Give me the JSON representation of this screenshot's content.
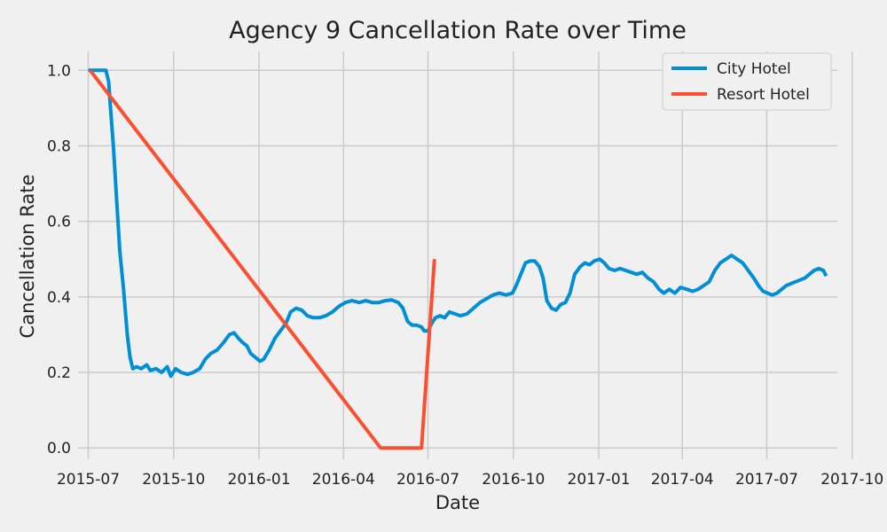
{
  "chart_data": {
    "type": "line",
    "title": "Agency 9 Cancellation Rate over Time",
    "xlabel": "Date",
    "ylabel": "Cancellation Rate",
    "xlim": [
      "2015-06-20",
      "2017-09-15"
    ],
    "ylim": [
      -0.03,
      1.05
    ],
    "x_ticks": [
      "2015-07-01",
      "2015-10-01",
      "2016-01-01",
      "2016-04-01",
      "2016-07-01",
      "2016-10-01",
      "2017-01-01",
      "2017-04-01",
      "2017-07-01",
      "2017-10-01"
    ],
    "x_tick_labels": [
      "2015-07",
      "2015-10",
      "2016-01",
      "2016-04",
      "2016-07",
      "2016-10",
      "2017-01",
      "2017-04",
      "2017-07",
      "2017-10"
    ],
    "y_ticks": [
      0.0,
      0.2,
      0.4,
      0.6,
      0.8,
      1.0
    ],
    "y_tick_labels": [
      "0.0",
      "0.2",
      "0.4",
      "0.6",
      "0.8",
      "1.0"
    ],
    "grid": true,
    "legend_position": "top-right",
    "series": [
      {
        "name": "City Hotel",
        "color": "#008fd5",
        "points": [
          [
            "2015-07-01",
            1.0
          ],
          [
            "2015-07-20",
            1.0
          ],
          [
            "2015-07-23",
            0.97
          ],
          [
            "2015-07-25",
            0.9
          ],
          [
            "2015-07-28",
            0.8
          ],
          [
            "2015-07-31",
            0.68
          ],
          [
            "2015-08-04",
            0.52
          ],
          [
            "2015-08-08",
            0.42
          ],
          [
            "2015-08-12",
            0.3
          ],
          [
            "2015-08-15",
            0.24
          ],
          [
            "2015-08-18",
            0.21
          ],
          [
            "2015-08-22",
            0.215
          ],
          [
            "2015-08-27",
            0.21
          ],
          [
            "2015-09-02",
            0.22
          ],
          [
            "2015-09-06",
            0.205
          ],
          [
            "2015-09-12",
            0.21
          ],
          [
            "2015-09-18",
            0.2
          ],
          [
            "2015-09-24",
            0.215
          ],
          [
            "2015-09-28",
            0.19
          ],
          [
            "2015-10-03",
            0.21
          ],
          [
            "2015-10-09",
            0.2
          ],
          [
            "2015-10-16",
            0.195
          ],
          [
            "2015-10-22",
            0.2
          ],
          [
            "2015-10-29",
            0.21
          ],
          [
            "2015-11-04",
            0.235
          ],
          [
            "2015-11-10",
            0.25
          ],
          [
            "2015-11-17",
            0.26
          ],
          [
            "2015-11-24",
            0.28
          ],
          [
            "2015-11-30",
            0.3
          ],
          [
            "2015-12-05",
            0.305
          ],
          [
            "2015-12-10",
            0.29
          ],
          [
            "2015-12-14",
            0.28
          ],
          [
            "2015-12-19",
            0.27
          ],
          [
            "2015-12-23",
            0.25
          ],
          [
            "2015-12-28",
            0.24
          ],
          [
            "2016-01-02",
            0.23
          ],
          [
            "2016-01-06",
            0.235
          ],
          [
            "2016-01-12",
            0.26
          ],
          [
            "2016-01-18",
            0.29
          ],
          [
            "2016-01-24",
            0.31
          ],
          [
            "2016-01-30",
            0.33
          ],
          [
            "2016-02-04",
            0.36
          ],
          [
            "2016-02-10",
            0.37
          ],
          [
            "2016-02-16",
            0.365
          ],
          [
            "2016-02-22",
            0.35
          ],
          [
            "2016-02-28",
            0.345
          ],
          [
            "2016-03-06",
            0.345
          ],
          [
            "2016-03-13",
            0.35
          ],
          [
            "2016-03-20",
            0.36
          ],
          [
            "2016-03-27",
            0.375
          ],
          [
            "2016-04-03",
            0.385
          ],
          [
            "2016-04-10",
            0.39
          ],
          [
            "2016-04-18",
            0.385
          ],
          [
            "2016-04-25",
            0.39
          ],
          [
            "2016-05-02",
            0.385
          ],
          [
            "2016-05-09",
            0.385
          ],
          [
            "2016-05-16",
            0.39
          ],
          [
            "2016-05-23",
            0.392
          ],
          [
            "2016-05-30",
            0.385
          ],
          [
            "2016-06-04",
            0.37
          ],
          [
            "2016-06-09",
            0.335
          ],
          [
            "2016-06-14",
            0.325
          ],
          [
            "2016-06-19",
            0.325
          ],
          [
            "2016-06-24",
            0.32
          ],
          [
            "2016-06-27",
            0.31
          ],
          [
            "2016-07-01",
            0.31
          ],
          [
            "2016-07-05",
            0.33
          ],
          [
            "2016-07-09",
            0.345
          ],
          [
            "2016-07-14",
            0.35
          ],
          [
            "2016-07-19",
            0.345
          ],
          [
            "2016-07-24",
            0.36
          ],
          [
            "2016-07-30",
            0.355
          ],
          [
            "2016-08-05",
            0.35
          ],
          [
            "2016-08-12",
            0.355
          ],
          [
            "2016-08-19",
            0.37
          ],
          [
            "2016-08-26",
            0.385
          ],
          [
            "2016-09-02",
            0.395
          ],
          [
            "2016-09-09",
            0.405
          ],
          [
            "2016-09-16",
            0.41
          ],
          [
            "2016-09-23",
            0.405
          ],
          [
            "2016-09-30",
            0.41
          ],
          [
            "2016-10-04",
            0.43
          ],
          [
            "2016-10-09",
            0.46
          ],
          [
            "2016-10-14",
            0.49
          ],
          [
            "2016-10-19",
            0.495
          ],
          [
            "2016-10-24",
            0.495
          ],
          [
            "2016-10-29",
            0.48
          ],
          [
            "2016-11-02",
            0.45
          ],
          [
            "2016-11-06",
            0.39
          ],
          [
            "2016-11-11",
            0.37
          ],
          [
            "2016-11-16",
            0.365
          ],
          [
            "2016-11-21",
            0.38
          ],
          [
            "2016-11-26",
            0.385
          ],
          [
            "2016-12-01",
            0.41
          ],
          [
            "2016-12-06",
            0.46
          ],
          [
            "2016-12-12",
            0.48
          ],
          [
            "2016-12-17",
            0.49
          ],
          [
            "2016-12-22",
            0.485
          ],
          [
            "2016-12-27",
            0.495
          ],
          [
            "2017-01-02",
            0.5
          ],
          [
            "2017-01-07",
            0.49
          ],
          [
            "2017-01-12",
            0.475
          ],
          [
            "2017-01-18",
            0.47
          ],
          [
            "2017-01-24",
            0.475
          ],
          [
            "2017-01-30",
            0.47
          ],
          [
            "2017-02-05",
            0.465
          ],
          [
            "2017-02-11",
            0.46
          ],
          [
            "2017-02-17",
            0.465
          ],
          [
            "2017-02-23",
            0.45
          ],
          [
            "2017-03-01",
            0.44
          ],
          [
            "2017-03-07",
            0.42
          ],
          [
            "2017-03-12",
            0.41
          ],
          [
            "2017-03-18",
            0.42
          ],
          [
            "2017-03-24",
            0.41
          ],
          [
            "2017-03-30",
            0.425
          ],
          [
            "2017-04-06",
            0.42
          ],
          [
            "2017-04-12",
            0.415
          ],
          [
            "2017-04-18",
            0.42
          ],
          [
            "2017-04-24",
            0.43
          ],
          [
            "2017-04-30",
            0.44
          ],
          [
            "2017-05-06",
            0.47
          ],
          [
            "2017-05-12",
            0.49
          ],
          [
            "2017-05-18",
            0.5
          ],
          [
            "2017-05-24",
            0.51
          ],
          [
            "2017-05-30",
            0.5
          ],
          [
            "2017-06-05",
            0.49
          ],
          [
            "2017-06-11",
            0.47
          ],
          [
            "2017-06-17",
            0.45
          ],
          [
            "2017-06-22",
            0.43
          ],
          [
            "2017-06-27",
            0.415
          ],
          [
            "2017-07-02",
            0.41
          ],
          [
            "2017-07-07",
            0.405
          ],
          [
            "2017-07-12",
            0.41
          ],
          [
            "2017-07-17",
            0.42
          ],
          [
            "2017-07-22",
            0.43
          ],
          [
            "2017-07-27",
            0.435
          ],
          [
            "2017-08-01",
            0.44
          ],
          [
            "2017-08-06",
            0.445
          ],
          [
            "2017-08-11",
            0.45
          ],
          [
            "2017-08-16",
            0.46
          ],
          [
            "2017-08-21",
            0.47
          ],
          [
            "2017-08-26",
            0.475
          ],
          [
            "2017-08-31",
            0.47
          ],
          [
            "2017-09-03",
            0.455
          ]
        ]
      },
      {
        "name": "Resort Hotel",
        "color": "#fc4f30",
        "points": [
          [
            "2015-07-03",
            1.0
          ],
          [
            "2016-05-11",
            0.0
          ],
          [
            "2016-06-24",
            0.0
          ],
          [
            "2016-07-08",
            0.5
          ]
        ]
      }
    ]
  }
}
